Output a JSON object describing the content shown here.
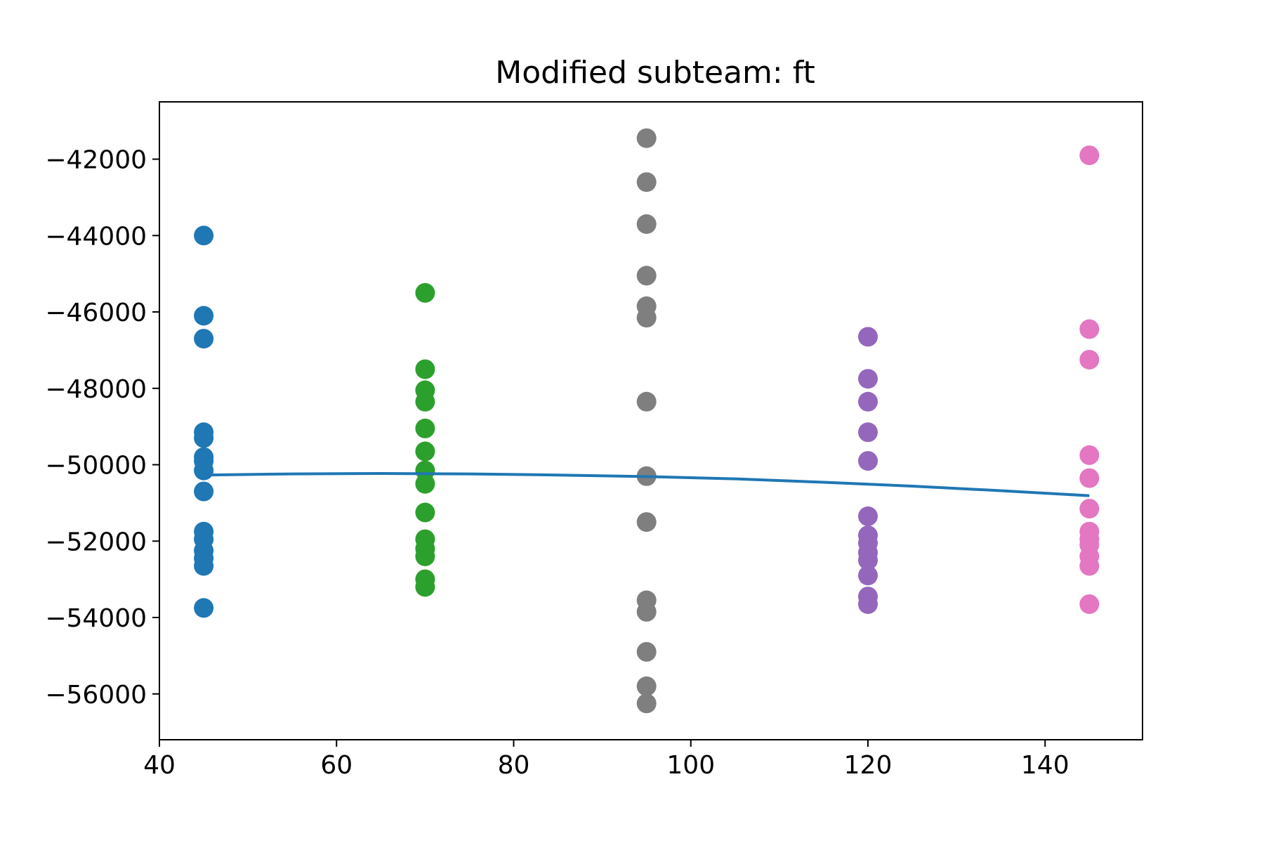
{
  "chart_data": {
    "type": "scatter",
    "title": "Modified subteam: ft",
    "xlabel": "",
    "ylabel": "",
    "xlim": [
      40,
      151
    ],
    "ylim": [
      -57200,
      -40500
    ],
    "xticks": [
      40,
      60,
      80,
      100,
      120,
      140
    ],
    "yticks": [
      -56000,
      -54000,
      -52000,
      -50000,
      -48000,
      -46000,
      -44000,
      -42000
    ],
    "xtick_labels": [
      "40",
      "60",
      "80",
      "100",
      "120",
      "140"
    ],
    "ytick_labels": [
      "−56000",
      "−54000",
      "−52000",
      "−50000",
      "−48000",
      "−46000",
      "−44000",
      "−42000"
    ],
    "grid": false,
    "series": [
      {
        "color": "#1f77b4",
        "x": 45,
        "values": [
          -44000,
          -46100,
          -46700,
          -49150,
          -49300,
          -49800,
          -49900,
          -50150,
          -50700,
          -51750,
          -51950,
          -52250,
          -52450,
          -52650,
          -53750
        ]
      },
      {
        "color": "#2ca02c",
        "x": 70,
        "values": [
          -45500,
          -47500,
          -48050,
          -48350,
          -49050,
          -49650,
          -50150,
          -50500,
          -51250,
          -51950,
          -52200,
          -52400,
          -53000,
          -53200
        ]
      },
      {
        "color": "#7f7f7f",
        "x": 95,
        "values": [
          -41450,
          -42600,
          -43700,
          -45050,
          -45850,
          -46150,
          -48350,
          -50300,
          -51500,
          -53550,
          -53850,
          -54900,
          -55800,
          -56250
        ]
      },
      {
        "color": "#9467bd",
        "x": 120,
        "values": [
          -46650,
          -47750,
          -48350,
          -49150,
          -49900,
          -51350,
          -51850,
          -52050,
          -52300,
          -52500,
          -52900,
          -53450,
          -53650
        ]
      },
      {
        "color": "#e377c2",
        "x": 145,
        "values": [
          -41900,
          -46450,
          -47250,
          -49750,
          -50350,
          -51150,
          -51750,
          -51950,
          -52100,
          -52400,
          -52650,
          -53650
        ]
      }
    ],
    "fit_line": {
      "color": "#1f77b4",
      "x": [
        45,
        55,
        65,
        75,
        85,
        95,
        105,
        115,
        125,
        135,
        145
      ],
      "y": [
        -50270,
        -50240,
        -50230,
        -50240,
        -50270,
        -50310,
        -50370,
        -50460,
        -50560,
        -50680,
        -50810
      ]
    }
  }
}
